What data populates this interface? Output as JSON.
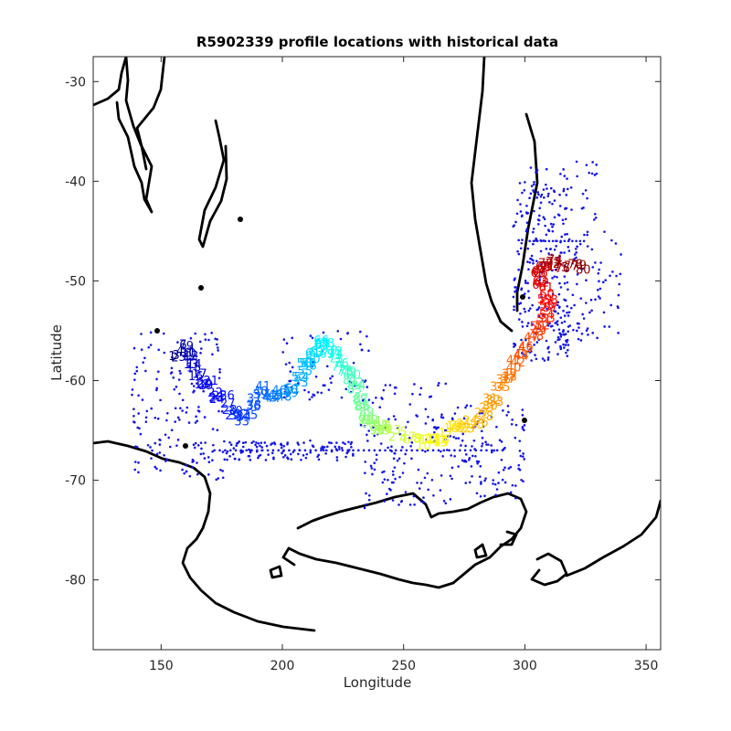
{
  "chart_data": {
    "type": "scatter",
    "title": "R5902339 profile locations with historical data",
    "xlabel": "Longitude",
    "ylabel": "Latitude",
    "xlim": [
      122,
      356
    ],
    "ylim": [
      -87,
      -27.5
    ],
    "xticks": [
      150,
      200,
      250,
      300,
      350
    ],
    "yticks": [
      -30,
      -40,
      -50,
      -60,
      -70,
      -80
    ],
    "grid": false,
    "historical_color": "#1414e6",
    "profile_colormap": "jet",
    "profile_track": [
      [
        155,
        -58
      ],
      [
        158,
        -57.5
      ],
      [
        161,
        -57
      ],
      [
        163,
        -58.5
      ],
      [
        165,
        -60
      ],
      [
        170,
        -61
      ],
      [
        175,
        -62
      ],
      [
        180,
        -63.5
      ],
      [
        184,
        -64
      ],
      [
        188,
        -62.5
      ],
      [
        193,
        -61.5
      ],
      [
        198,
        -62
      ],
      [
        203,
        -61.5
      ],
      [
        207,
        -60
      ],
      [
        210,
        -59
      ],
      [
        213,
        -57.5
      ],
      [
        216,
        -56.5
      ],
      [
        219,
        -57.5
      ],
      [
        222,
        -58
      ],
      [
        226,
        -59
      ],
      [
        229,
        -60
      ],
      [
        232,
        -62
      ],
      [
        234,
        -63.5
      ],
      [
        236,
        -65
      ],
      [
        240,
        -65
      ],
      [
        245,
        -65.5
      ],
      [
        250,
        -66
      ],
      [
        257,
        -66.5
      ],
      [
        263,
        -66.5
      ],
      [
        268,
        -66
      ],
      [
        274,
        -65
      ],
      [
        280,
        -64.5
      ],
      [
        285,
        -63.5
      ],
      [
        288,
        -62
      ],
      [
        292,
        -60
      ],
      [
        296,
        -58.5
      ],
      [
        300,
        -57
      ],
      [
        305,
        -55.5
      ],
      [
        309,
        -54
      ],
      [
        310,
        -52.5
      ],
      [
        308,
        -51
      ],
      [
        306,
        -50
      ],
      [
        307,
        -48.5
      ],
      [
        312,
        -48.5
      ],
      [
        318,
        -49
      ],
      [
        325,
        -49.5
      ]
    ],
    "historical_points_shown": true
  }
}
